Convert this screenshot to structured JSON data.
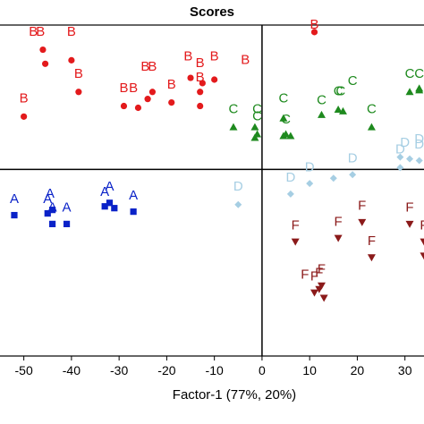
{
  "chart_data": {
    "type": "scatter",
    "title": "Scores",
    "xlabel": "Factor-1 (77%, 20%)",
    "ylabel": "",
    "xlim": [
      -55,
      34
    ],
    "ylim": [
      -5.3,
      4.1
    ],
    "x_ticks": [
      "-50",
      "-40",
      "-30",
      "-20",
      "-10",
      "0",
      "10",
      "20",
      "30"
    ],
    "x_tick_values": [
      -50,
      -40,
      -30,
      -20,
      -10,
      0,
      10,
      20,
      30
    ],
    "reference_lines": {
      "x": 0,
      "y": 0
    },
    "grid": false,
    "legend": "none",
    "series": [
      {
        "label": "B",
        "color": "#e31a1c",
        "marker": "circle",
        "points": [
          [
            -46,
            3.4
          ],
          [
            -45.5,
            3.0
          ],
          [
            -40,
            3.1
          ],
          [
            -38.5,
            2.2
          ],
          [
            -50,
            1.5
          ],
          [
            -29,
            1.8
          ],
          [
            -26,
            1.75
          ],
          [
            -24,
            2.0
          ],
          [
            -23,
            2.2
          ],
          [
            -19,
            1.9
          ],
          [
            -15,
            2.6
          ],
          [
            -13,
            2.2
          ],
          [
            -13,
            1.8
          ],
          [
            -12.5,
            2.45
          ],
          [
            -10,
            2.55
          ],
          [
            11,
            3.9
          ]
        ],
        "labels": [
          [
            -48,
            3.8,
            "B"
          ],
          [
            -46.5,
            3.8,
            "B"
          ],
          [
            -40,
            3.8,
            "B"
          ],
          [
            -38.5,
            2.6,
            "B"
          ],
          [
            -50,
            1.9,
            "B"
          ],
          [
            -29,
            2.2,
            "B"
          ],
          [
            -27,
            2.2,
            "B"
          ],
          [
            -24.5,
            2.8,
            "B"
          ],
          [
            -23,
            2.8,
            "B"
          ],
          [
            -19,
            2.3,
            "B"
          ],
          [
            -15.5,
            3.1,
            "B"
          ],
          [
            -13,
            2.5,
            "B"
          ],
          [
            -13,
            2.9,
            "B"
          ],
          [
            -10,
            3.1,
            "B"
          ],
          [
            -3.5,
            3.0,
            "B"
          ],
          [
            11,
            4.0,
            "B"
          ]
        ]
      },
      {
        "label": "C",
        "color": "#1e8a1e",
        "marker": "triangle",
        "points": [
          [
            -6,
            1.2
          ],
          [
            -1.5,
            1.2
          ],
          [
            -1,
            1.0
          ],
          [
            -1.5,
            0.9
          ],
          [
            4.5,
            1.45
          ],
          [
            5,
            1.0
          ],
          [
            6,
            0.95
          ],
          [
            4.5,
            0.95
          ],
          [
            12.5,
            1.55
          ],
          [
            16,
            1.7
          ],
          [
            17,
            1.65
          ],
          [
            23,
            1.2
          ],
          [
            31,
            2.2
          ],
          [
            33,
            2.3
          ],
          [
            33,
            2.25
          ]
        ],
        "labels": [
          [
            -6,
            1.6,
            "C"
          ],
          [
            -1,
            1.6,
            "C"
          ],
          [
            -1,
            1.4,
            "C"
          ],
          [
            4.5,
            1.9,
            "C"
          ],
          [
            5,
            1.3,
            "C"
          ],
          [
            12.5,
            1.85,
            "C"
          ],
          [
            16,
            2.1,
            "C"
          ],
          [
            16.5,
            2.1,
            "C"
          ],
          [
            19,
            2.4,
            "C"
          ],
          [
            23,
            1.6,
            "C"
          ],
          [
            31,
            2.6,
            "C"
          ],
          [
            33,
            2.6,
            "C"
          ]
        ]
      },
      {
        "label": "D",
        "color": "#a6cee3",
        "marker": "diamond",
        "points": [
          [
            -5,
            -1.0
          ],
          [
            6,
            -0.7
          ],
          [
            10,
            -0.4
          ],
          [
            15,
            -0.25
          ],
          [
            19,
            -0.15
          ],
          [
            29,
            0.05
          ],
          [
            29,
            0.35
          ],
          [
            31,
            0.3
          ],
          [
            33,
            0.25
          ]
        ],
        "labels": [
          [
            -5,
            -0.6,
            "D"
          ],
          [
            6,
            -0.35,
            "D"
          ],
          [
            10,
            -0.05,
            "D"
          ],
          [
            19,
            0.2,
            "D"
          ],
          [
            29,
            0.45,
            "D"
          ],
          [
            30,
            0.65,
            "D"
          ],
          [
            33,
            0.6,
            "D"
          ],
          [
            33,
            0.75,
            "D"
          ]
        ]
      },
      {
        "label": "A",
        "color": "#0a22c8",
        "marker": "square",
        "points": [
          [
            -52,
            -1.3
          ],
          [
            -45,
            -1.25
          ],
          [
            -44,
            -1.15
          ],
          [
            -44,
            -1.55
          ],
          [
            -41,
            -1.55
          ],
          [
            -32,
            -0.95
          ],
          [
            -33,
            -1.05
          ],
          [
            -31,
            -1.1
          ],
          [
            -27,
            -1.2
          ]
        ],
        "labels": [
          [
            -52,
            -0.95,
            "A"
          ],
          [
            -45,
            -0.95,
            "A"
          ],
          [
            -44.5,
            -0.8,
            "A"
          ],
          [
            -44,
            -1.2,
            "A"
          ],
          [
            -41,
            -1.2,
            "A"
          ],
          [
            -32,
            -0.6,
            "A"
          ],
          [
            -33,
            -0.75,
            "A"
          ],
          [
            -27,
            -0.85,
            "A"
          ]
        ]
      },
      {
        "label": "F",
        "color": "#8b1a1a",
        "marker": "triangle-down",
        "points": [
          [
            7,
            -2.05
          ],
          [
            11,
            -3.5
          ],
          [
            12,
            -3.4
          ],
          [
            13,
            -3.65
          ],
          [
            12.5,
            -3.3
          ],
          [
            16,
            -1.95
          ],
          [
            21,
            -1.5
          ],
          [
            23,
            -2.5
          ],
          [
            31,
            -1.55
          ],
          [
            34,
            -2.05
          ],
          [
            34,
            -2.45
          ]
        ],
        "labels": [
          [
            7,
            -1.7,
            "F"
          ],
          [
            11,
            -3.15,
            "F"
          ],
          [
            12,
            -3.05,
            "F"
          ],
          [
            12.5,
            -2.95,
            "F"
          ],
          [
            16,
            -1.6,
            "F"
          ],
          [
            21,
            -1.15,
            "F"
          ],
          [
            23,
            -2.15,
            "F"
          ],
          [
            31,
            -1.2,
            "F"
          ],
          [
            34,
            -1.7,
            "F"
          ],
          [
            9,
            -3.1,
            "F"
          ]
        ]
      }
    ]
  }
}
